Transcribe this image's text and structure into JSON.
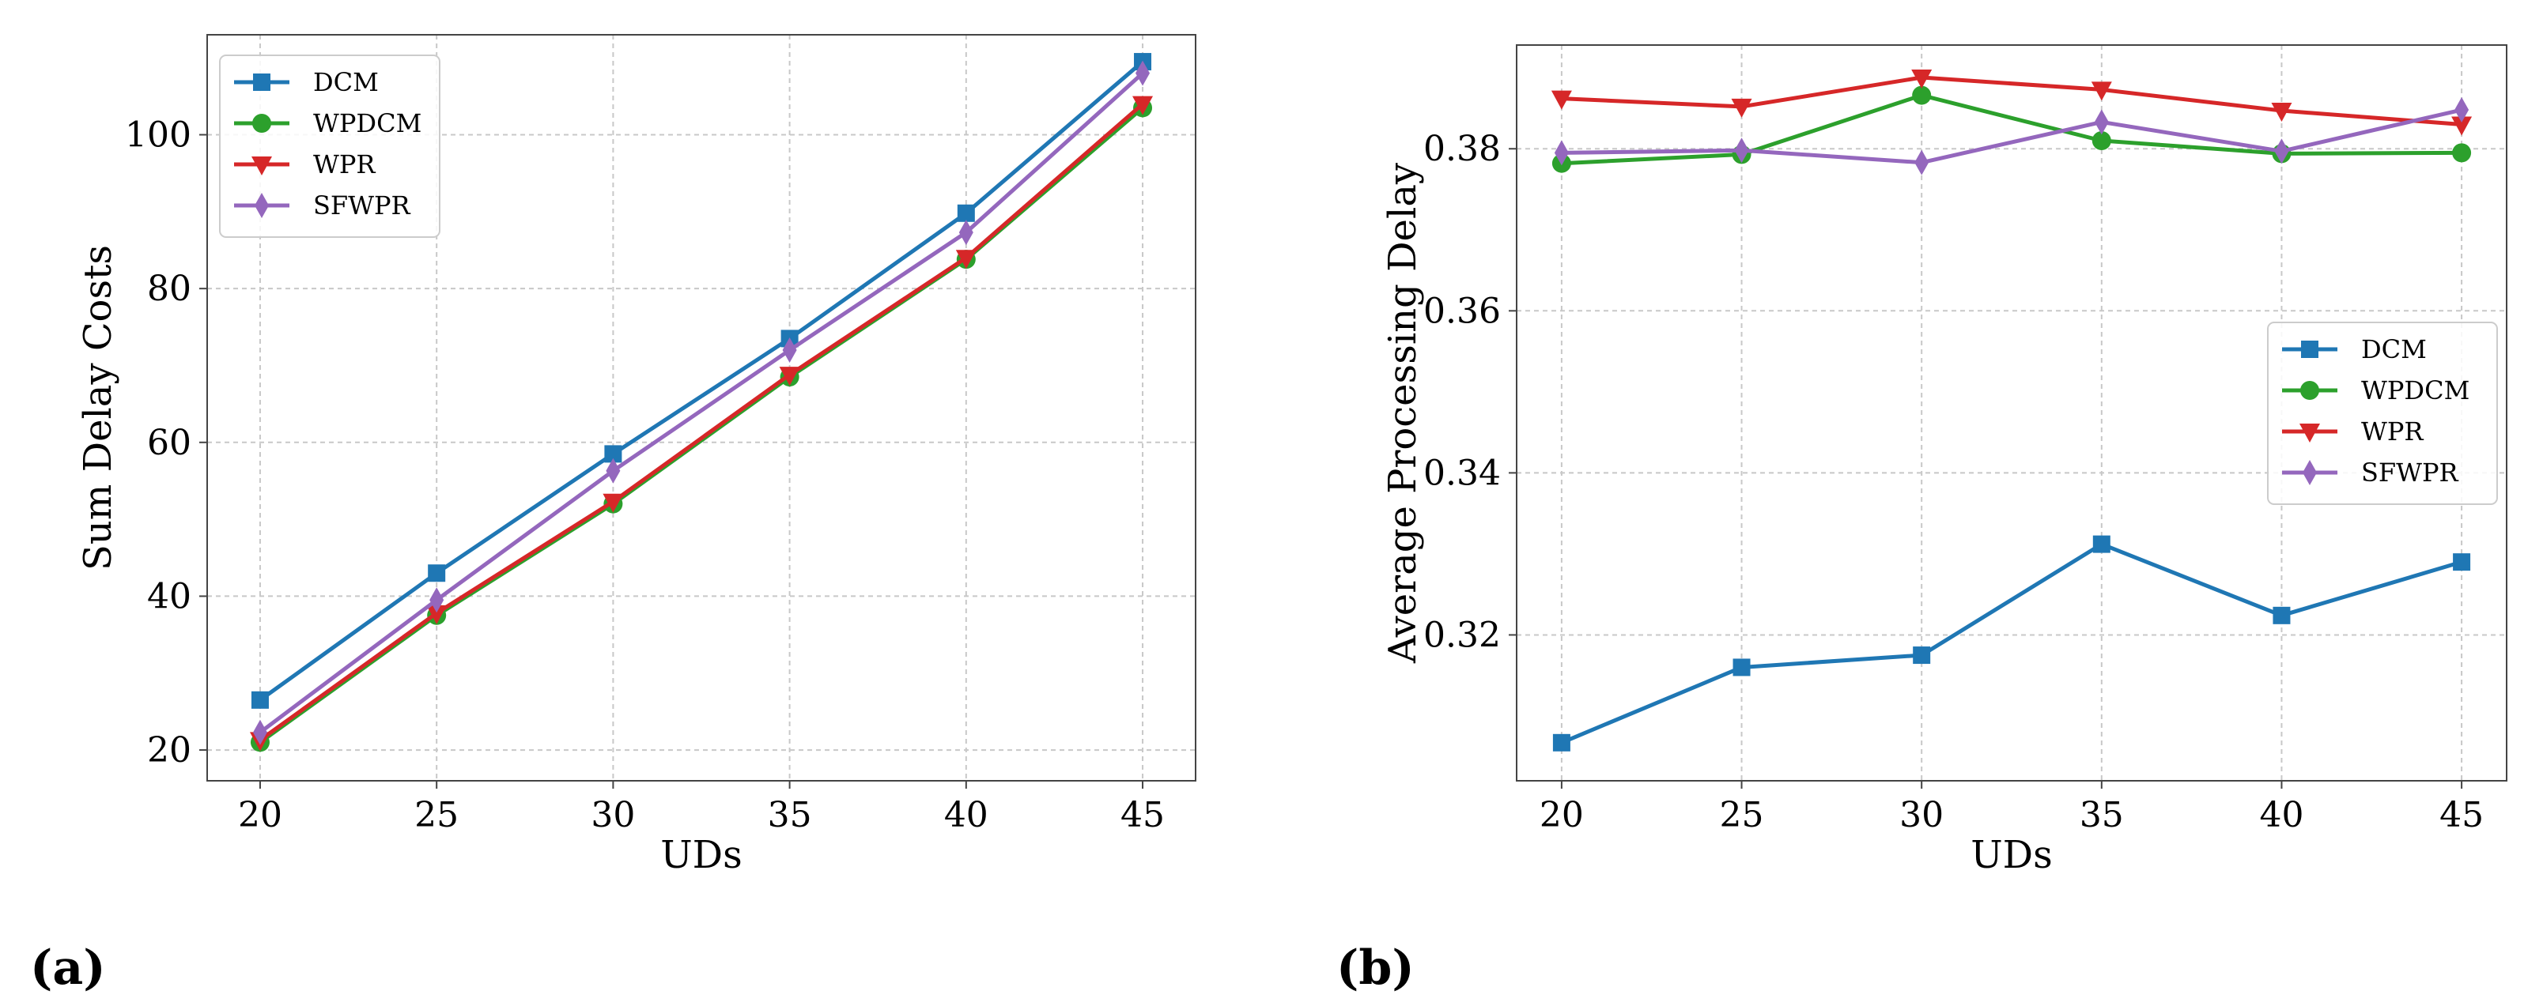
{
  "chart_data": [
    {
      "id": "a",
      "panel_label": "(a)",
      "type": "line",
      "title": "",
      "xlabel": "UDs",
      "ylabel": "Sum Delay Costs",
      "x": [
        20,
        25,
        30,
        35,
        40,
        45
      ],
      "xlim": [
        18.5,
        46.5
      ],
      "ylim": [
        16,
        113
      ],
      "xticks": [
        20,
        25,
        30,
        35,
        40,
        45
      ],
      "yticks": [
        20,
        40,
        60,
        80,
        100
      ],
      "grid": true,
      "legend_position": "top-left",
      "series": [
        {
          "name": "DCM",
          "color": "#1f77b4",
          "marker": "square",
          "values": [
            26.5,
            43.0,
            58.5,
            73.5,
            89.8,
            109.5
          ]
        },
        {
          "name": "WPDCM",
          "color": "#2ca02c",
          "marker": "circle",
          "values": [
            21.0,
            37.5,
            52.0,
            68.5,
            83.8,
            103.5
          ]
        },
        {
          "name": "WPR",
          "color": "#d62728",
          "marker": "triangle-down",
          "values": [
            21.3,
            37.8,
            52.3,
            68.8,
            84.0,
            104.0
          ]
        },
        {
          "name": "SFWPR",
          "color": "#9467bd",
          "marker": "diamond",
          "values": [
            22.3,
            39.5,
            56.3,
            72.0,
            87.3,
            108.0
          ]
        }
      ]
    },
    {
      "id": "b",
      "panel_label": "(b)",
      "type": "line",
      "title": "",
      "xlabel": "UDs",
      "ylabel": "Average Processing Delay",
      "x": [
        20,
        25,
        30,
        35,
        40,
        45
      ],
      "xlim": [
        18.75,
        46.25
      ],
      "ylim": [
        0.302,
        0.3928
      ],
      "xticks": [
        20,
        25,
        30,
        35,
        40,
        45
      ],
      "yticks": [
        0.32,
        0.34,
        0.36,
        0.38
      ],
      "ytick_labels": [
        "0.32",
        "0.34",
        "0.36",
        "0.38"
      ],
      "grid": true,
      "legend_position": "center-right",
      "series": [
        {
          "name": "DCM",
          "color": "#1f77b4",
          "marker": "square",
          "values": [
            0.3067,
            0.316,
            0.3175,
            0.3312,
            0.3224,
            0.329
          ]
        },
        {
          "name": "WPDCM",
          "color": "#2ca02c",
          "marker": "circle",
          "values": [
            0.3782,
            0.3793,
            0.3866,
            0.381,
            0.3794,
            0.3795
          ]
        },
        {
          "name": "WPR",
          "color": "#d62728",
          "marker": "triangle-down",
          "values": [
            0.3862,
            0.3852,
            0.3888,
            0.3873,
            0.3847,
            0.383
          ]
        },
        {
          "name": "SFWPR",
          "color": "#9467bd",
          "marker": "diamond",
          "values": [
            0.3795,
            0.3798,
            0.3783,
            0.3833,
            0.3797,
            0.3848
          ]
        }
      ]
    }
  ]
}
